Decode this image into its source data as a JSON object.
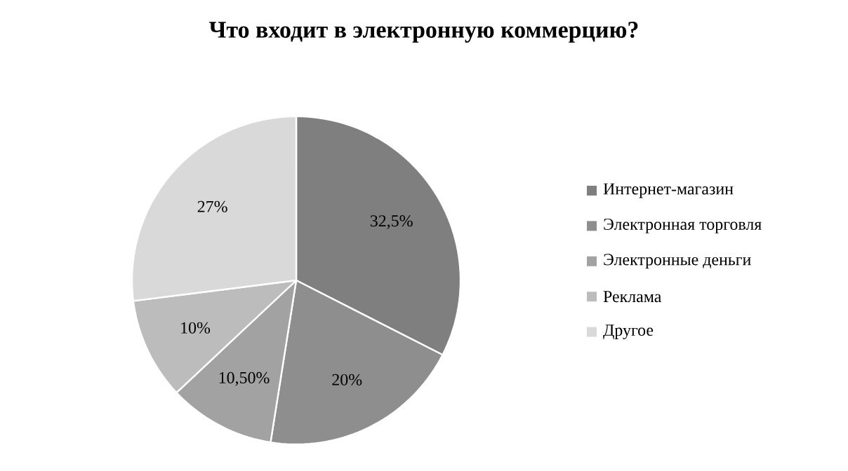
{
  "chart_data": {
    "type": "pie",
    "title": "Что входит в электронную коммерцию?",
    "categories": [
      "Интернет-магазин",
      "Электронная торговля",
      "Электронные деньги",
      "Реклама",
      "Другое"
    ],
    "values": [
      32.5,
      20,
      10.5,
      10,
      27
    ],
    "value_labels": [
      "32,5%",
      "20%",
      "10,50%",
      "10%",
      "27%"
    ],
    "colors": [
      "#7f7f7f",
      "#8e8e8e",
      "#a2a2a2",
      "#bcbcbc",
      "#d9d9d9"
    ],
    "legend": "right"
  }
}
